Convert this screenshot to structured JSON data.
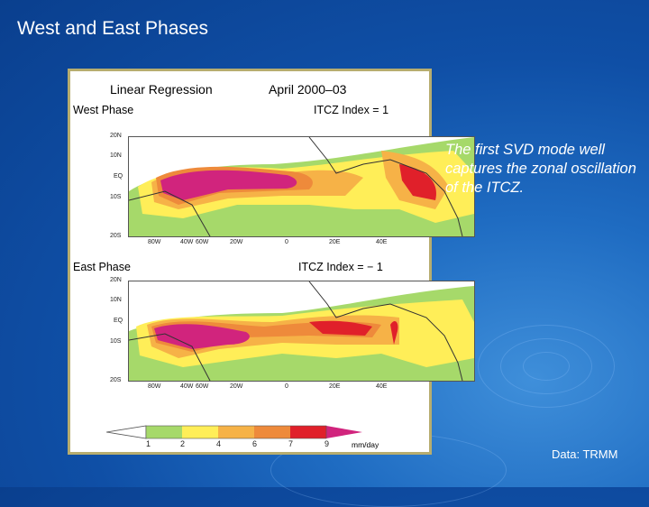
{
  "slide": {
    "title": "West and East Phases",
    "side_text": "The first SVD mode well captures the zonal oscillation of the ITCZ.",
    "source": "Data: TRMM"
  },
  "figure": {
    "method": "Linear Regression",
    "period": "April 2000–03",
    "panels": [
      {
        "label": "West Phase",
        "index": "ITCZ Index = 1"
      },
      {
        "label": "East Phase",
        "index": "ITCZ Index = − 1"
      }
    ],
    "lat_labels": [
      "20N",
      "10N",
      "EQ",
      "10S",
      "20S"
    ],
    "lon_labels": [
      "80W",
      "60W",
      "40W",
      "20W",
      "0",
      "20E",
      "40E"
    ],
    "colorbar": {
      "ticks": [
        "1",
        "2",
        "4",
        "6",
        "7",
        "9"
      ],
      "unit": "mm/day",
      "colors": [
        "#a6d96a",
        "#ffee58",
        "#f6b247",
        "#ee8a3b",
        "#e0202a",
        "#d1247d"
      ]
    }
  }
}
